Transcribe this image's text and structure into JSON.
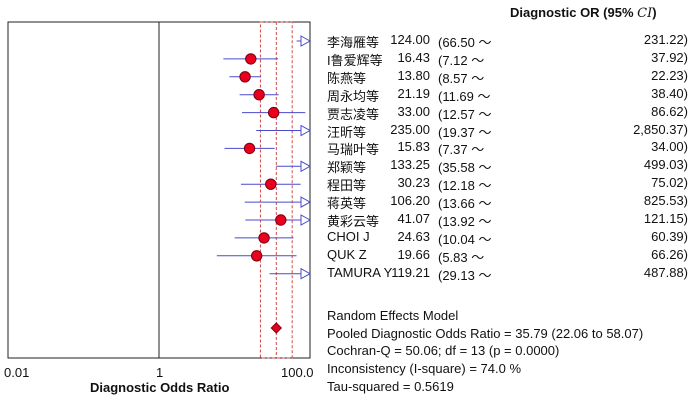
{
  "chart_data": {
    "type": "forest",
    "title": "",
    "column_header": {
      "main": "Diagnostic OR (95% ",
      "ci": "CI",
      "close": ")"
    },
    "xlabel": "Diagnostic Odds Ratio",
    "x_scale": "log",
    "xlim": [
      0.01,
      100.0
    ],
    "x_ticks": [
      {
        "value": 0.01,
        "label": "0.01"
      },
      {
        "value": 1,
        "label": "1"
      },
      {
        "value": 100.0,
        "label": "100.0"
      }
    ],
    "studies": [
      {
        "name": "李海雁等",
        "or": 124.0,
        "lo": 66.5,
        "hi": 231.22,
        "or_text": "124.00",
        "lo_text": "(66.50 ～",
        "hi_text": "231.22)"
      },
      {
        "name": "I鲁爱辉等",
        "or": 16.43,
        "lo": 7.12,
        "hi": 37.92,
        "or_text": "16.43",
        "lo_text": "(7.12 ～",
        "hi_text": "37.92)"
      },
      {
        "name": "陈燕等",
        "or": 13.8,
        "lo": 8.57,
        "hi": 22.23,
        "or_text": "13.80",
        "lo_text": "(8.57 ～",
        "hi_text": "22.23)"
      },
      {
        "name": "周永均等",
        "or": 21.19,
        "lo": 11.69,
        "hi": 38.4,
        "or_text": "21.19",
        "lo_text": "(11.69 ～",
        "hi_text": "38.40)"
      },
      {
        "name": "贾志凌等",
        "or": 33.0,
        "lo": 12.57,
        "hi": 86.62,
        "or_text": "33.00",
        "lo_text": "(12.57 ～",
        "hi_text": "86.62)"
      },
      {
        "name": "汪昕等",
        "or": 235.0,
        "lo": 19.37,
        "hi": 2850.37,
        "or_text": "235.00",
        "lo_text": "(19.37 ～",
        "hi_text": "2,850.37)"
      },
      {
        "name": "马瑞叶等",
        "or": 15.83,
        "lo": 7.37,
        "hi": 34.0,
        "or_text": "15.83",
        "lo_text": "(7.37 ～",
        "hi_text": "34.00)"
      },
      {
        "name": "郑颖等",
        "or": 133.25,
        "lo": 35.58,
        "hi": 499.03,
        "or_text": "133.25",
        "lo_text": "(35.58 ～",
        "hi_text": "499.03)"
      },
      {
        "name": "程田等",
        "or": 30.23,
        "lo": 12.18,
        "hi": 75.02,
        "or_text": "30.23",
        "lo_text": "(12.18 ～",
        "hi_text": "75.02)"
      },
      {
        "name": "蒋英等",
        "or": 106.2,
        "lo": 13.66,
        "hi": 825.53,
        "or_text": "106.20",
        "lo_text": "(13.66 ～",
        "hi_text": "825.53)"
      },
      {
        "name": "黄彩云等",
        "or": 41.07,
        "lo": 13.92,
        "hi": 121.15,
        "or_text": "41.07",
        "lo_text": "(13.92 ～",
        "hi_text": "121.15)"
      },
      {
        "name": "CHOI J",
        "or": 24.63,
        "lo": 10.04,
        "hi": 60.39,
        "or_text": "24.63",
        "lo_text": "(10.04 ～",
        "hi_text": "60.39)"
      },
      {
        "name": "QUK Z",
        "or": 19.66,
        "lo": 5.83,
        "hi": 66.26,
        "or_text": "19.66",
        "lo_text": "(5.83 ～",
        "hi_text": "66.26)"
      },
      {
        "name": "TAMURA Y",
        "or": 119.21,
        "lo": 29.13,
        "hi": 487.88,
        "or_text": "119.21",
        "lo_text": "(29.13 ～",
        "hi_text": "487.88)"
      }
    ],
    "pooled": {
      "or": 35.79,
      "lo": 22.06,
      "hi": 58.07
    },
    "summary_lines": [
      "Random Effects Model",
      "Pooled Diagnostic Odds Ratio = 35.79 (22.06 to 58.07)",
      "Cochran-Q = 50.06; df =  13 (p = 0.0000)",
      "Inconsistency (I-square) = 74.0 %",
      "Tau-squared = 0.5619"
    ],
    "colors": {
      "point": "#e8001c",
      "ci_line": "#4a4acd",
      "pooled_band": "#d04a4a",
      "frame": "#222222"
    }
  }
}
